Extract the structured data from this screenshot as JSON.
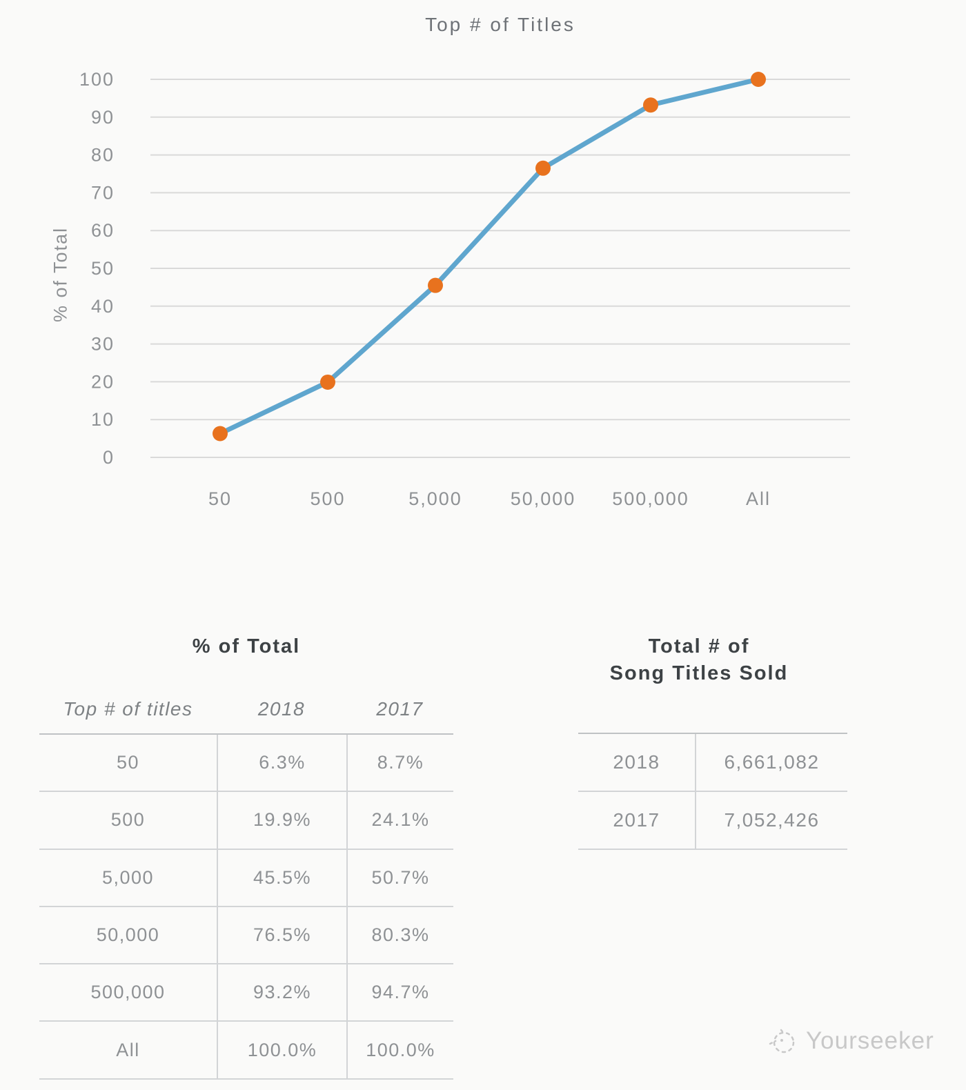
{
  "chart": {
    "title": "Top # of Titles",
    "ylabel": "% of Total"
  },
  "chart_data": {
    "type": "line",
    "title": "Top # of Titles",
    "xlabel": "",
    "ylabel": "% of Total",
    "categories": [
      "50",
      "500",
      "5,000",
      "50,000",
      "500,000",
      "All"
    ],
    "series": [
      {
        "name": "2018",
        "values": [
          6.3,
          19.9,
          45.5,
          76.5,
          93.2,
          100.0
        ]
      }
    ],
    "ylim": [
      0,
      100
    ],
    "ytick_step": 10,
    "grid": true,
    "legend": false,
    "line_color": "#5fa6ce",
    "marker_color": "#e8721e",
    "grid_color": "#d9d9d9"
  },
  "left_table": {
    "title": "% of Total",
    "headers": [
      "Top # of titles",
      "2018",
      "2017"
    ],
    "rows": [
      [
        "50",
        "6.3%",
        "8.7%"
      ],
      [
        "500",
        "19.9%",
        "24.1%"
      ],
      [
        "5,000",
        "45.5%",
        "50.7%"
      ],
      [
        "50,000",
        "76.5%",
        "80.3%"
      ],
      [
        "500,000",
        "93.2%",
        "94.7%"
      ],
      [
        "All",
        "100.0%",
        "100.0%"
      ]
    ]
  },
  "right_table": {
    "title_line1": "Total # of",
    "title_line2": "Song Titles Sold",
    "rows": [
      [
        "2018",
        "6,661,082"
      ],
      [
        "2017",
        "7,052,426"
      ]
    ]
  },
  "footer": {
    "brand": "Yourseeker"
  }
}
